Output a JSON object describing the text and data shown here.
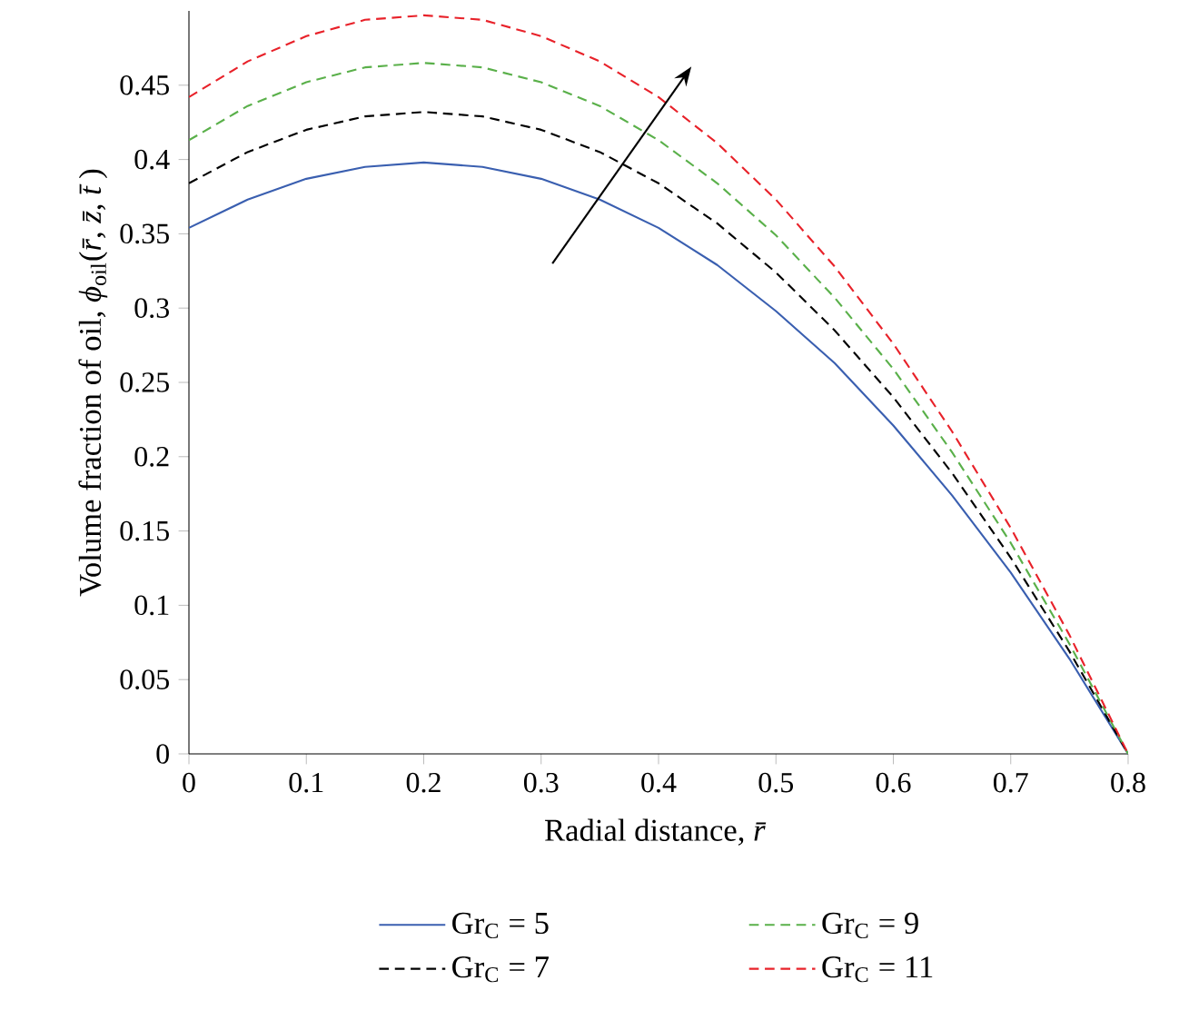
{
  "chart_data": {
    "type": "line",
    "xlabel": "Radial distance, *r̄*",
    "ylabel": "Volume fraction of oil, *ϕ*$_{oil}$(*r̄*, *z̄*, *t̄*)",
    "x": [
      0,
      0.05,
      0.1,
      0.15,
      0.2,
      0.25,
      0.3,
      0.35,
      0.4,
      0.45,
      0.5,
      0.55,
      0.6,
      0.65,
      0.7,
      0.75,
      0.8
    ],
    "series": [
      {
        "name": "Gr$_{C}$ = 5",
        "color": "#3a5fb0",
        "line_style": "solid",
        "values": [
          0.354,
          0.373,
          0.387,
          0.395,
          0.398,
          0.395,
          0.387,
          0.373,
          0.354,
          0.329,
          0.298,
          0.263,
          0.221,
          0.174,
          0.122,
          0.064,
          0
        ]
      },
      {
        "name": "Gr$_{C}$ = 7",
        "color": "#000000",
        "line_style": "dashed",
        "values": [
          0.384,
          0.405,
          0.42,
          0.429,
          0.432,
          0.429,
          0.42,
          0.405,
          0.384,
          0.357,
          0.324,
          0.285,
          0.24,
          0.189,
          0.132,
          0.069,
          0
        ]
      },
      {
        "name": "Gr$_{C}$ = 9",
        "color": "#5ab04a",
        "line_style": "dashed",
        "values": [
          0.413,
          0.436,
          0.452,
          0.462,
          0.465,
          0.462,
          0.452,
          0.436,
          0.413,
          0.384,
          0.349,
          0.307,
          0.259,
          0.203,
          0.142,
          0.074,
          0
        ]
      },
      {
        "name": "Gr$_{C}$ = 11",
        "color": "#e8222a",
        "line_style": "dashed",
        "values": [
          0.442,
          0.466,
          0.483,
          0.494,
          0.497,
          0.494,
          0.483,
          0.466,
          0.442,
          0.411,
          0.373,
          0.328,
          0.276,
          0.217,
          0.152,
          0.08,
          0
        ]
      }
    ],
    "xlim": [
      0,
      0.8
    ],
    "ylim": [
      0,
      0.5
    ],
    "xticks": [
      0,
      0.1,
      0.2,
      0.3,
      0.4,
      0.5,
      0.6,
      0.7,
      0.8
    ],
    "yticks": [
      0,
      0.05,
      0.1,
      0.15,
      0.2,
      0.25,
      0.3,
      0.35,
      0.4,
      0.45
    ],
    "grid": false,
    "legend": "bottom",
    "marker": "none"
  }
}
